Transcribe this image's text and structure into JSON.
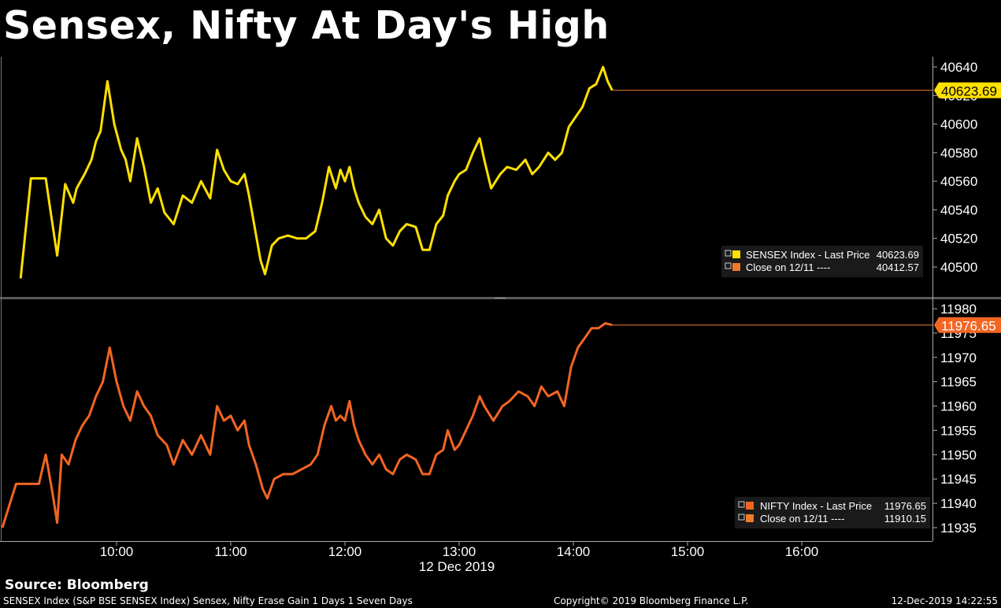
{
  "title": "Sensex, Nifty At Day's High",
  "source": "Source: Bloomberg",
  "footer": {
    "left": "SENSEX Index (S&P BSE SENSEX Index) Sensex, Nifty Erase Gain 1 Days 1 Seven Days",
    "center": "Copyright© 2019 Bloomberg Finance L.P.",
    "right": "12-Dec-2019 14:22:55"
  },
  "colors": {
    "sensex": "#ffe000",
    "nifty": "#f26522",
    "close_line": "#f07a2a",
    "background": "#000000",
    "divider": "#5a5a5a"
  },
  "x_axis": {
    "ticks": [
      "10:00",
      "11:00",
      "12:00",
      "13:00",
      "14:00",
      "15:00",
      "16:00"
    ],
    "date_label": "12 Dec 2019"
  },
  "chart_data": [
    {
      "type": "line",
      "ylim": [
        40492,
        40650
      ],
      "yticks": [
        "40640",
        "40620",
        "40600",
        "40580",
        "40560",
        "40540",
        "40520",
        "40500"
      ],
      "last_label": "40623.69",
      "legend": [
        {
          "label": "SENSEX Index - Last Price",
          "value": "40623.69"
        },
        {
          "label": "Close on 12/11 ----",
          "value": "40412.57"
        }
      ],
      "series": [
        {
          "name": "SENSEX Index - Last Price",
          "x": [],
          "values": [
            [
              9.16,
              40492
            ],
            [
              9.25,
              40562
            ],
            [
              9.38,
              40562
            ],
            [
              9.42,
              40540
            ],
            [
              9.48,
              40508
            ],
            [
              9.55,
              40558
            ],
            [
              9.62,
              40545
            ],
            [
              9.65,
              40555
            ],
            [
              9.72,
              40565
            ],
            [
              9.78,
              40575
            ],
            [
              9.82,
              40588
            ],
            [
              9.86,
              40595
            ],
            [
              9.92,
              40630
            ],
            [
              9.98,
              40600
            ],
            [
              10.04,
              40582
            ],
            [
              10.08,
              40575
            ],
            [
              10.12,
              40560
            ],
            [
              10.18,
              40590
            ],
            [
              10.24,
              40570
            ],
            [
              10.3,
              40545
            ],
            [
              10.36,
              40555
            ],
            [
              10.42,
              40538
            ],
            [
              10.5,
              40530
            ],
            [
              10.58,
              40550
            ],
            [
              10.66,
              40545
            ],
            [
              10.74,
              40560
            ],
            [
              10.82,
              40548
            ],
            [
              10.88,
              40582
            ],
            [
              10.94,
              40568
            ],
            [
              11.0,
              40560
            ],
            [
              11.06,
              40558
            ],
            [
              11.12,
              40565
            ],
            [
              11.16,
              40550
            ],
            [
              11.2,
              40532
            ],
            [
              11.26,
              40505
            ],
            [
              11.3,
              40495
            ],
            [
              11.36,
              40515
            ],
            [
              11.42,
              40520
            ],
            [
              11.5,
              40522
            ],
            [
              11.58,
              40520
            ],
            [
              11.66,
              40520
            ],
            [
              11.74,
              40525
            ],
            [
              11.8,
              40545
            ],
            [
              11.86,
              40570
            ],
            [
              11.92,
              40555
            ],
            [
              11.96,
              40568
            ],
            [
              12.0,
              40560
            ],
            [
              12.04,
              40570
            ],
            [
              12.08,
              40555
            ],
            [
              12.12,
              40545
            ],
            [
              12.18,
              40535
            ],
            [
              12.24,
              40530
            ],
            [
              12.3,
              40540
            ],
            [
              12.36,
              40520
            ],
            [
              12.42,
              40515
            ],
            [
              12.48,
              40525
            ],
            [
              12.54,
              40530
            ],
            [
              12.62,
              40528
            ],
            [
              12.68,
              40512
            ],
            [
              12.74,
              40512
            ],
            [
              12.8,
              40530
            ],
            [
              12.86,
              40536
            ],
            [
              12.9,
              40550
            ],
            [
              12.96,
              40560
            ],
            [
              13.0,
              40565
            ],
            [
              13.06,
              40568
            ],
            [
              13.12,
              40580
            ],
            [
              13.18,
              40590
            ],
            [
              13.22,
              40575
            ],
            [
              13.28,
              40555
            ],
            [
              13.36,
              40565
            ],
            [
              13.42,
              40570
            ],
            [
              13.5,
              40568
            ],
            [
              13.58,
              40575
            ],
            [
              13.64,
              40565
            ],
            [
              13.7,
              40570
            ],
            [
              13.78,
              40580
            ],
            [
              13.84,
              40575
            ],
            [
              13.9,
              40580
            ],
            [
              13.96,
              40598
            ],
            [
              14.02,
              40605
            ],
            [
              14.08,
              40612
            ],
            [
              14.14,
              40625
            ],
            [
              14.2,
              40628
            ],
            [
              14.26,
              40640
            ],
            [
              14.3,
              40630
            ],
            [
              14.34,
              40623.69
            ]
          ]
        }
      ]
    },
    {
      "type": "line",
      "ylim": [
        11932,
        11982
      ],
      "yticks": [
        "11980",
        "11975",
        "11970",
        "11965",
        "11960",
        "11955",
        "11950",
        "11945",
        "11940",
        "11935"
      ],
      "last_label": "11976.65",
      "legend": [
        {
          "label": "NIFTY Index - Last Price",
          "value": "11976.65"
        },
        {
          "label": "Close on 12/11 ----",
          "value": "11910.15"
        }
      ],
      "series": [
        {
          "name": "NIFTY Index - Last Price",
          "x": [],
          "values": [
            [
              9.0,
              11935
            ],
            [
              9.12,
              11944
            ],
            [
              9.32,
              11944
            ],
            [
              9.38,
              11950
            ],
            [
              9.44,
              11942
            ],
            [
              9.48,
              11936
            ],
            [
              9.52,
              11950
            ],
            [
              9.58,
              11948
            ],
            [
              9.64,
              11953
            ],
            [
              9.7,
              11956
            ],
            [
              9.76,
              11958
            ],
            [
              9.82,
              11962
            ],
            [
              9.88,
              11965
            ],
            [
              9.94,
              11972
            ],
            [
              10.0,
              11965
            ],
            [
              10.06,
              11960
            ],
            [
              10.12,
              11957
            ],
            [
              10.18,
              11963
            ],
            [
              10.24,
              11960
            ],
            [
              10.3,
              11958
            ],
            [
              10.36,
              11954
            ],
            [
              10.44,
              11952
            ],
            [
              10.5,
              11948
            ],
            [
              10.58,
              11953
            ],
            [
              10.66,
              11950
            ],
            [
              10.74,
              11954
            ],
            [
              10.82,
              11950
            ],
            [
              10.88,
              11960
            ],
            [
              10.94,
              11957
            ],
            [
              11.0,
              11958
            ],
            [
              11.06,
              11955
            ],
            [
              11.12,
              11957
            ],
            [
              11.16,
              11952
            ],
            [
              11.22,
              11948
            ],
            [
              11.28,
              11943
            ],
            [
              11.32,
              11941
            ],
            [
              11.38,
              11945
            ],
            [
              11.46,
              11946
            ],
            [
              11.54,
              11946
            ],
            [
              11.62,
              11947
            ],
            [
              11.7,
              11948
            ],
            [
              11.76,
              11950
            ],
            [
              11.82,
              11956
            ],
            [
              11.88,
              11960
            ],
            [
              11.92,
              11957
            ],
            [
              11.96,
              11958
            ],
            [
              12.0,
              11957
            ],
            [
              12.04,
              11961
            ],
            [
              12.08,
              11956
            ],
            [
              12.12,
              11953
            ],
            [
              12.18,
              11950
            ],
            [
              12.24,
              11948
            ],
            [
              12.3,
              11950
            ],
            [
              12.36,
              11947
            ],
            [
              12.42,
              11946
            ],
            [
              12.48,
              11949
            ],
            [
              12.54,
              11950
            ],
            [
              12.62,
              11949
            ],
            [
              12.68,
              11946
            ],
            [
              12.74,
              11946
            ],
            [
              12.8,
              11950
            ],
            [
              12.86,
              11951
            ],
            [
              12.9,
              11955
            ],
            [
              12.96,
              11951
            ],
            [
              13.0,
              11952
            ],
            [
              13.06,
              11955
            ],
            [
              13.12,
              11958
            ],
            [
              13.18,
              11962
            ],
            [
              13.22,
              11960
            ],
            [
              13.3,
              11957
            ],
            [
              13.38,
              11960
            ],
            [
              13.44,
              11961
            ],
            [
              13.52,
              11963
            ],
            [
              13.6,
              11962
            ],
            [
              13.66,
              11960
            ],
            [
              13.72,
              11964
            ],
            [
              13.78,
              11962
            ],
            [
              13.86,
              11963
            ],
            [
              13.92,
              11960
            ],
            [
              13.98,
              11968
            ],
            [
              14.04,
              11972
            ],
            [
              14.1,
              11974
            ],
            [
              14.16,
              11976
            ],
            [
              14.22,
              11976
            ],
            [
              14.28,
              11977
            ],
            [
              14.34,
              11976.65
            ]
          ]
        }
      ]
    }
  ]
}
